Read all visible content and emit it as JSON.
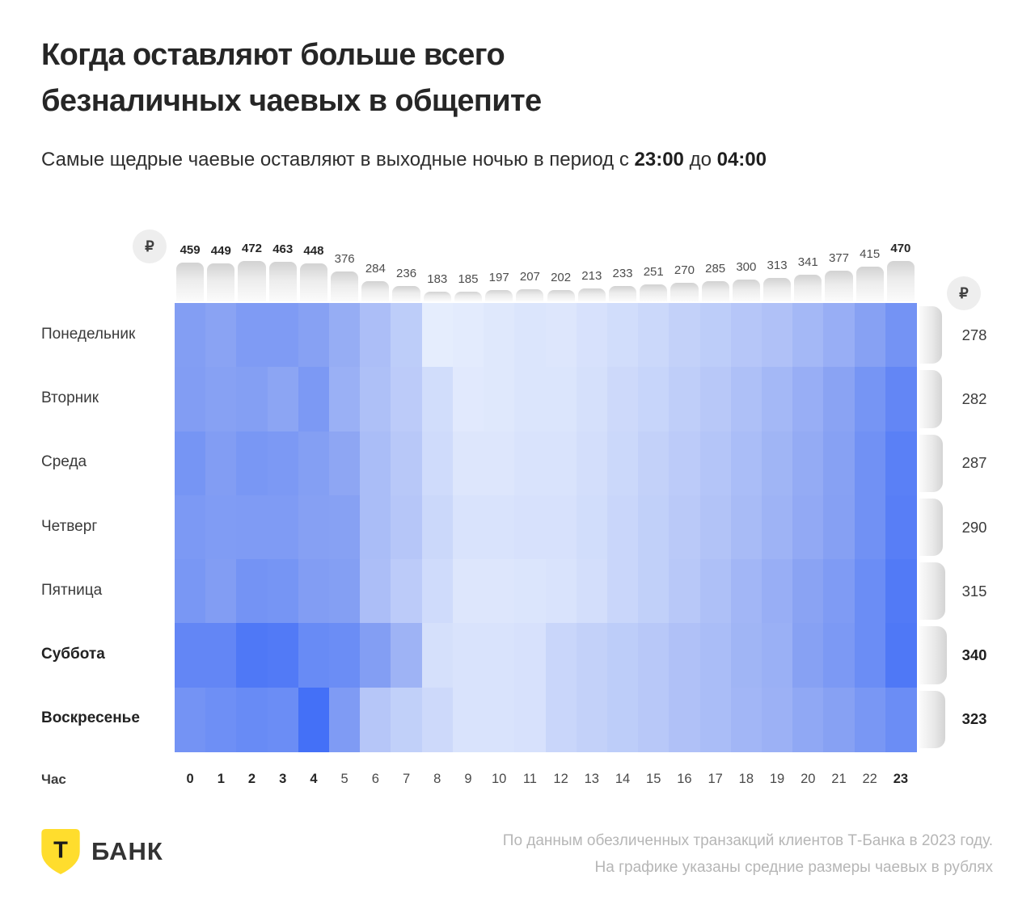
{
  "title": {
    "line1": "Когда оставляют больше всего",
    "line2": "безналичных чаевых в общепите"
  },
  "subtitle": {
    "prefix": "Самые щедрые чаевые оставляют в выходные ночью в период с ",
    "bold_start": "23:00",
    "middle": " до ",
    "bold_end": "04:00"
  },
  "currency_symbol": "₽",
  "chart_data": {
    "type": "heatmap",
    "x_axis_label": "Час",
    "hours": [
      "0",
      "1",
      "2",
      "3",
      "4",
      "5",
      "6",
      "7",
      "8",
      "9",
      "10",
      "11",
      "12",
      "13",
      "14",
      "15",
      "16",
      "17",
      "18",
      "19",
      "20",
      "21",
      "22",
      "23"
    ],
    "bold_hour_indices": [
      0,
      1,
      2,
      3,
      4,
      23
    ],
    "days": [
      "Понедельник",
      "Вторник",
      "Среда",
      "Четверг",
      "Пятница",
      "Суббота",
      "Воскресенье"
    ],
    "bold_day_indices": [
      5,
      6
    ],
    "column_means": [
      459,
      449,
      472,
      463,
      448,
      376,
      284,
      236,
      183,
      185,
      197,
      207,
      202,
      213,
      233,
      251,
      270,
      285,
      300,
      313,
      341,
      377,
      415,
      470
    ],
    "bold_column_indices": [
      0,
      1,
      2,
      3,
      4,
      23
    ],
    "row_means": [
      278,
      282,
      287,
      290,
      315,
      340,
      323
    ],
    "bold_row_indices": [
      5,
      6
    ],
    "column_means_range": [
      183,
      472
    ],
    "intensity_note": "relative cell color intensity 0..1 estimated from the published graphic",
    "intensity": [
      [
        0.55,
        0.5,
        0.58,
        0.58,
        0.52,
        0.44,
        0.33,
        0.24,
        0.04,
        0.05,
        0.07,
        0.09,
        0.08,
        0.11,
        0.14,
        0.17,
        0.21,
        0.24,
        0.28,
        0.31,
        0.37,
        0.43,
        0.52,
        0.66
      ],
      [
        0.56,
        0.52,
        0.54,
        0.49,
        0.6,
        0.42,
        0.32,
        0.25,
        0.14,
        0.06,
        0.07,
        0.09,
        0.09,
        0.12,
        0.16,
        0.19,
        0.23,
        0.27,
        0.32,
        0.37,
        0.43,
        0.5,
        0.64,
        0.78
      ],
      [
        0.64,
        0.56,
        0.62,
        0.6,
        0.54,
        0.48,
        0.34,
        0.27,
        0.15,
        0.08,
        0.08,
        0.1,
        0.1,
        0.13,
        0.17,
        0.21,
        0.25,
        0.29,
        0.34,
        0.39,
        0.45,
        0.52,
        0.68,
        0.84
      ],
      [
        0.6,
        0.57,
        0.58,
        0.58,
        0.53,
        0.52,
        0.34,
        0.28,
        0.17,
        0.1,
        0.1,
        0.11,
        0.11,
        0.14,
        0.18,
        0.22,
        0.26,
        0.3,
        0.35,
        0.4,
        0.46,
        0.53,
        0.68,
        0.86
      ],
      [
        0.62,
        0.56,
        0.66,
        0.64,
        0.56,
        0.54,
        0.33,
        0.25,
        0.15,
        0.08,
        0.08,
        0.09,
        0.1,
        0.13,
        0.18,
        0.22,
        0.27,
        0.32,
        0.38,
        0.43,
        0.5,
        0.58,
        0.72,
        0.9
      ],
      [
        0.78,
        0.78,
        0.92,
        0.9,
        0.74,
        0.72,
        0.55,
        0.4,
        0.12,
        0.1,
        0.1,
        0.11,
        0.18,
        0.21,
        0.24,
        0.27,
        0.31,
        0.34,
        0.39,
        0.42,
        0.52,
        0.6,
        0.72,
        0.92
      ],
      [
        0.66,
        0.7,
        0.74,
        0.72,
        1.0,
        0.58,
        0.28,
        0.22,
        0.16,
        0.1,
        0.1,
        0.11,
        0.18,
        0.21,
        0.24,
        0.27,
        0.31,
        0.34,
        0.38,
        0.41,
        0.47,
        0.52,
        0.62,
        0.72
      ]
    ],
    "palette": {
      "light": "#EDF3FE",
      "mid": "#8AA3F3",
      "dark": "#4470F7"
    }
  },
  "footer": {
    "logo_letter": "Т",
    "logo_text": "БАНК",
    "brand_yellow": "#FFDD2D",
    "source_line1": "По данным обезличенных транзакций клиентов Т-Банка в 2023 году.",
    "source_line2": "На графике указаны средние размеры чаевых в рублях"
  }
}
